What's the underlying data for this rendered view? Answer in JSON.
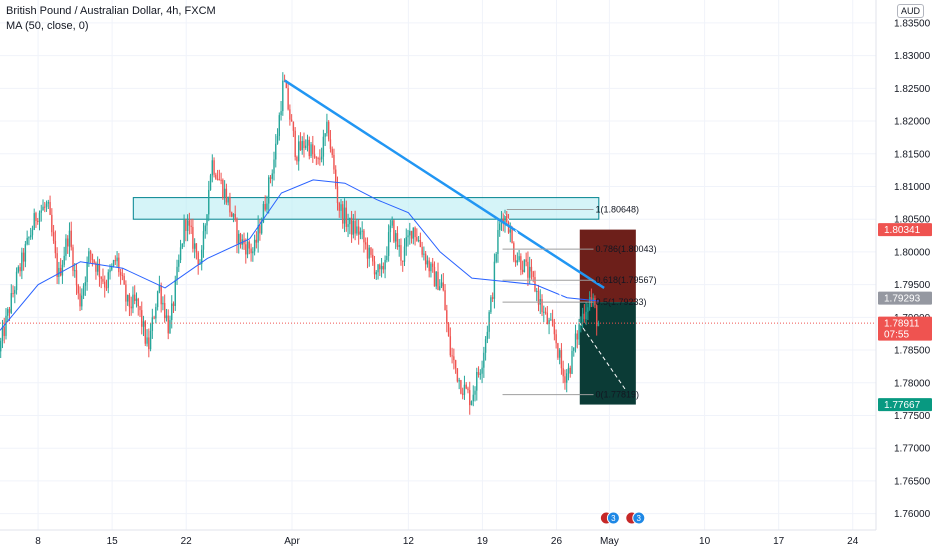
{
  "legend": {
    "symbol": "British Pound / Australian Dollar, 4h, FXCM",
    "ma": "MA (50, close, 0)"
  },
  "currency_badge": "AUD",
  "colors": {
    "up": "#26a69a",
    "down": "#ef5350",
    "ma": "#2962ff",
    "trendline": "#2196f3",
    "zone_fill": "#b2ebf2",
    "stop_zone": "#6d1f1a",
    "target_zone": "#0b3b36",
    "price_line": "#ef5350"
  },
  "chart_data": {
    "type": "candlestick",
    "instrument": "British Pound / Australian Dollar",
    "timeframe": "4h",
    "source": "FXCM",
    "ylim": [
      1.7575,
      1.8385
    ],
    "y_ticks": [
      1.76,
      1.765,
      1.77,
      1.775,
      1.78,
      1.785,
      1.79,
      1.795,
      1.8,
      1.805,
      1.81,
      1.815,
      1.82,
      1.825,
      1.83,
      1.835
    ],
    "y_tick_labels": [
      "1.76000",
      "1.76500",
      "1.77000",
      "1.77500",
      "1.78000",
      "1.78500",
      "1.79000",
      "1.79500",
      "1.80000",
      "1.80500",
      "1.81000",
      "1.81500",
      "1.82000",
      "1.82500",
      "1.83000",
      "1.83500"
    ],
    "x_tick_labels": [
      "8",
      "15",
      "22",
      "Apr",
      "12",
      "19",
      "26",
      "May",
      "10",
      "17",
      "24"
    ],
    "x_tick_days": [
      8,
      15,
      22,
      32,
      43,
      50,
      57,
      62,
      71,
      78,
      85
    ],
    "x_range_days": [
      4.4,
      87.2
    ],
    "price_path": [
      [
        4.4,
        1.7848
      ],
      [
        6.0,
        1.7955
      ],
      [
        8.0,
        1.806
      ],
      [
        9.0,
        1.807
      ],
      [
        10.0,
        1.796
      ],
      [
        11.0,
        1.803
      ],
      [
        12.0,
        1.792
      ],
      [
        13.0,
        1.8
      ],
      [
        14.5,
        1.795
      ],
      [
        15.5,
        1.799
      ],
      [
        16.5,
        1.792
      ],
      [
        17.5,
        1.792
      ],
      [
        18.5,
        1.785
      ],
      [
        19.5,
        1.795
      ],
      [
        20.5,
        1.788
      ],
      [
        22.0,
        1.805
      ],
      [
        23.5,
        1.798
      ],
      [
        24.5,
        1.814
      ],
      [
        26.0,
        1.808
      ],
      [
        27.0,
        1.802
      ],
      [
        28.5,
        1.8
      ],
      [
        29.5,
        1.807
      ],
      [
        30.5,
        1.815
      ],
      [
        31.3,
        1.8262
      ],
      [
        32.5,
        1.815
      ],
      [
        33.5,
        1.817
      ],
      [
        34.5,
        1.813
      ],
      [
        35.5,
        1.819
      ],
      [
        36.5,
        1.807
      ],
      [
        37.5,
        1.804
      ],
      [
        38.5,
        1.803
      ],
      [
        39.5,
        1.799
      ],
      [
        40.5,
        1.796
      ],
      [
        41.5,
        1.804
      ],
      [
        42.5,
        1.799
      ],
      [
        43.5,
        1.804
      ],
      [
        44.5,
        1.8
      ],
      [
        45.5,
        1.796
      ],
      [
        46.3,
        1.795
      ],
      [
        47.0,
        1.785
      ],
      [
        48.0,
        1.78
      ],
      [
        49.0,
        1.7775
      ],
      [
        50.0,
        1.783
      ],
      [
        51.0,
        1.793
      ],
      [
        51.5,
        1.802
      ],
      [
        52.0,
        1.806
      ],
      [
        52.5,
        1.805
      ],
      [
        53.0,
        1.8
      ],
      [
        54.0,
        1.798
      ],
      [
        55.0,
        1.795
      ],
      [
        56.0,
        1.79
      ],
      [
        57.0,
        1.787
      ],
      [
        57.7,
        1.781
      ],
      [
        58.3,
        1.782
      ],
      [
        59.0,
        1.787
      ],
      [
        59.5,
        1.79
      ],
      [
        60.2,
        1.793
      ],
      [
        60.6,
        1.792
      ],
      [
        61.0,
        1.7891
      ]
    ],
    "ma_path": [
      [
        4.4,
        1.788
      ],
      [
        8.0,
        1.795
      ],
      [
        12.0,
        1.7985
      ],
      [
        16.0,
        1.7975
      ],
      [
        20.0,
        1.7945
      ],
      [
        24.0,
        1.799
      ],
      [
        28.0,
        1.802
      ],
      [
        31.0,
        1.809
      ],
      [
        34.0,
        1.811
      ],
      [
        37.0,
        1.8105
      ],
      [
        40.0,
        1.808
      ],
      [
        43.0,
        1.806
      ],
      [
        46.0,
        1.8
      ],
      [
        49.0,
        1.796
      ],
      [
        52.0,
        1.7955
      ],
      [
        55.0,
        1.795
      ],
      [
        58.0,
        1.793
      ],
      [
        61.0,
        1.7925
      ]
    ],
    "trendline": {
      "from": [
        31.3,
        1.8262
      ],
      "to": [
        61.5,
        1.7945
      ]
    },
    "trendline_extension": {
      "from": [
        52.0,
        1.806
      ],
      "to": [
        63.5,
        1.779
      ]
    },
    "supply_zone": {
      "x": [
        17.0,
        61.0
      ],
      "y": [
        1.805,
        1.8083
      ]
    },
    "fibonacci": [
      {
        "level": "1",
        "price": 1.80648,
        "label": "1(1.80648)"
      },
      {
        "level": "0.786",
        "price": 1.80043,
        "label": "0.786(1.80043)"
      },
      {
        "level": "0.618",
        "price": 1.79567,
        "label": "0.618(1.79567)"
      },
      {
        "level": "0.5",
        "price": 1.79233,
        "label": "0.5(1.79233)"
      },
      {
        "level": "0",
        "price": 1.77819,
        "label": "0(1.77819)"
      }
    ],
    "fib_x": [
      51.9,
      60.5
    ],
    "fib_x_top": [
      52.3,
      60.5
    ],
    "short_position": {
      "x": [
        59.2,
        64.5
      ],
      "entry": 1.79233,
      "stop": 1.80341,
      "target": 1.77667
    },
    "price_tags": [
      {
        "value": "1.80341",
        "price": 1.80341,
        "color": "#ef5350",
        "sub": ""
      },
      {
        "value": "1.79293",
        "price": 1.79293,
        "color": "#9598a1",
        "sub": ""
      },
      {
        "value": "1.78911",
        "price": 1.78911,
        "color": "#ef5350",
        "sub": "07:55"
      },
      {
        "value": "1.77667",
        "price": 1.77667,
        "color": "#089981",
        "sub": ""
      }
    ],
    "current_price": 1.78911,
    "events": [
      {
        "day": 62.0,
        "label": "3"
      },
      {
        "day": 64.4,
        "label": "3"
      }
    ]
  }
}
